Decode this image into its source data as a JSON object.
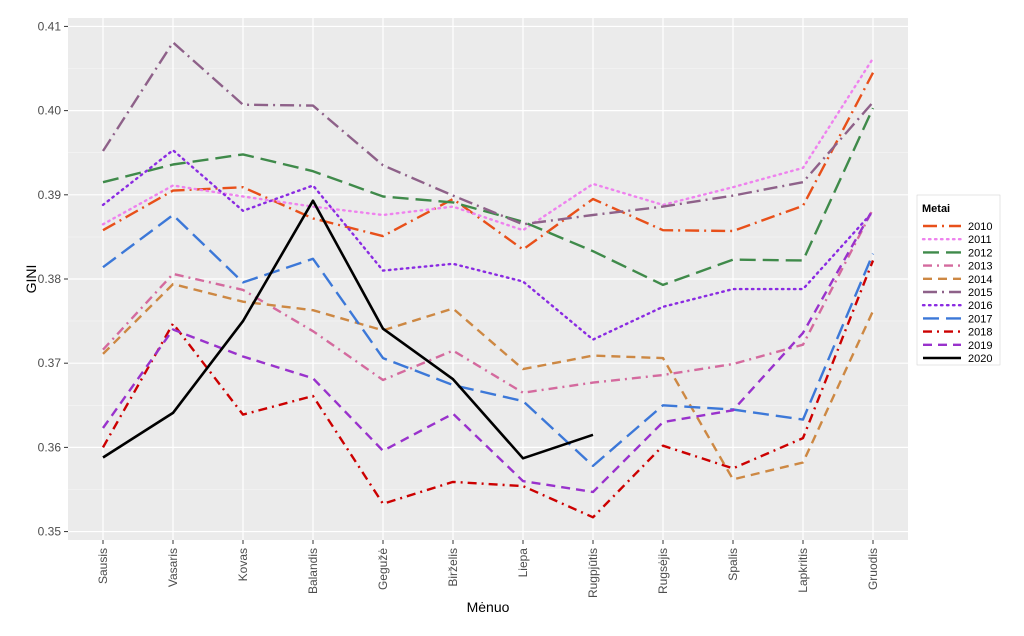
{
  "chart_data": {
    "type": "line",
    "xlabel": "Mėnuo",
    "ylabel": "GINI",
    "ylim": [
      0.349,
      0.411
    ],
    "yticks": [
      "0.35",
      "0.36",
      "0.37",
      "0.38",
      "0.39",
      "0.40",
      "0.41"
    ],
    "grid": true,
    "legend_title": "Metai",
    "legend_position": "right",
    "categories": [
      "Sausis",
      "Vasaris",
      "Kovas",
      "Balandis",
      "Gegužė",
      "Birželis",
      "Liepa",
      "Rugpjūtis",
      "Rugsėjis",
      "Spalis",
      "Lapkritis",
      "Gruodis"
    ],
    "series": [
      {
        "name": "2010",
        "color": "#e8501a",
        "dash": "longdash-dot",
        "values": [
          0.3858,
          0.3905,
          0.3909,
          0.3872,
          0.3851,
          0.3895,
          0.3835,
          0.3895,
          0.3858,
          0.3857,
          0.3887,
          0.4045
        ]
      },
      {
        "name": "2011",
        "color": "#ee82ee",
        "dash": "dotted",
        "values": [
          0.3865,
          0.3911,
          0.3898,
          0.3886,
          0.3876,
          0.3886,
          0.3858,
          0.3913,
          0.3888,
          0.3909,
          0.3932,
          0.4062
        ]
      },
      {
        "name": "2012",
        "color": "#3f8a4a",
        "dash": "longdash",
        "values": [
          0.3915,
          0.3936,
          0.3948,
          0.3928,
          0.3898,
          0.3891,
          0.3868,
          0.3833,
          0.3793,
          0.3823,
          0.3822,
          0.4003
        ]
      },
      {
        "name": "2013",
        "color": "#d46a9e",
        "dash": "dashdot",
        "values": [
          0.3716,
          0.3806,
          0.3787,
          0.3738,
          0.368,
          0.3715,
          0.3665,
          0.3677,
          0.3686,
          0.3699,
          0.3722,
          0.3883
        ]
      },
      {
        "name": "2014",
        "color": "#cd8843",
        "dash": "dashed",
        "values": [
          0.3711,
          0.3794,
          0.3773,
          0.3763,
          0.3739,
          0.3765,
          0.3693,
          0.3709,
          0.3706,
          0.3562,
          0.3582,
          0.3762
        ]
      },
      {
        "name": "2015",
        "color": "#8e6189",
        "dash": "longdash-dot",
        "values": [
          0.3952,
          0.4081,
          0.4007,
          0.4006,
          0.3935,
          0.3899,
          0.3865,
          0.3876,
          0.3886,
          0.3899,
          0.3915,
          0.401
        ]
      },
      {
        "name": "2016",
        "color": "#8a2be2",
        "dash": "dotted",
        "values": [
          0.3888,
          0.3953,
          0.3881,
          0.3911,
          0.381,
          0.3818,
          0.3797,
          0.3728,
          0.3767,
          0.3788,
          0.3788,
          0.388
        ]
      },
      {
        "name": "2017",
        "color": "#3c78d8",
        "dash": "longdash",
        "values": [
          0.3814,
          0.3876,
          0.3796,
          0.3824,
          0.3706,
          0.3674,
          0.3655,
          0.3578,
          0.365,
          0.3645,
          0.3633,
          0.383
        ]
      },
      {
        "name": "2018",
        "color": "#cc0000",
        "dash": "dashdot",
        "values": [
          0.36,
          0.3747,
          0.3639,
          0.3661,
          0.3533,
          0.3559,
          0.3554,
          0.3517,
          0.3602,
          0.3575,
          0.3611,
          0.3822
        ]
      },
      {
        "name": "2019",
        "color": "#9932cc",
        "dash": "dashed",
        "values": [
          0.3623,
          0.374,
          0.3708,
          0.3682,
          0.3596,
          0.364,
          0.356,
          0.3547,
          0.363,
          0.3644,
          0.3736,
          0.3883
        ]
      },
      {
        "name": "2020",
        "color": "#000000",
        "dash": "solid",
        "values": [
          0.3588,
          0.3641,
          0.375,
          0.3893,
          0.3741,
          0.3681,
          0.3587,
          0.3615,
          null,
          null,
          null,
          null
        ]
      }
    ]
  }
}
